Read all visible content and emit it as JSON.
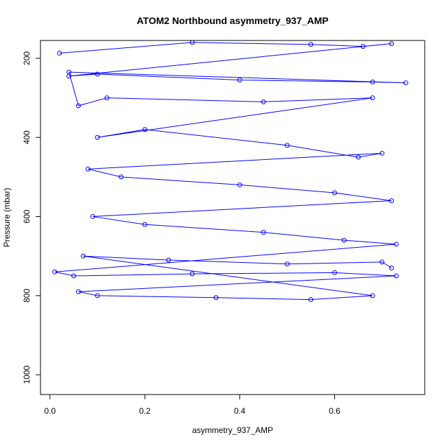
{
  "chart_data": {
    "type": "line",
    "title": "ATOM2 Northbound asymmetry_937_AMP",
    "xlabel": "asymmetry_937_AMP",
    "ylabel": "Pressure (mbar)",
    "xlim": [
      -0.02,
      0.79
    ],
    "ylim": [
      1050,
      155
    ],
    "y_reversed": true,
    "x_ticks": [
      0.0,
      0.2,
      0.4,
      0.6
    ],
    "x_tick_labels": [
      "0.0",
      "0.2",
      "0.4",
      "0.6"
    ],
    "y_ticks": [
      200,
      400,
      600,
      800,
      1000
    ],
    "y_tick_labels": [
      "200",
      "400",
      "600",
      "800",
      "1000"
    ],
    "grid": false,
    "series": [
      {
        "color": "#0000ff",
        "marker": "open-circle",
        "points": [
          [
            0.02,
            187
          ],
          [
            0.3,
            160
          ],
          [
            0.55,
            165
          ],
          [
            0.66,
            170
          ],
          [
            0.72,
            163
          ],
          [
            0.04,
            245
          ],
          [
            0.1,
            240
          ],
          [
            0.4,
            255
          ],
          [
            0.68,
            260
          ],
          [
            0.75,
            262
          ],
          [
            0.04,
            235
          ],
          [
            0.06,
            320
          ],
          [
            0.12,
            300
          ],
          [
            0.45,
            310
          ],
          [
            0.68,
            300
          ],
          [
            0.1,
            400
          ],
          [
            0.2,
            380
          ],
          [
            0.5,
            420
          ],
          [
            0.65,
            450
          ],
          [
            0.7,
            440
          ],
          [
            0.08,
            480
          ],
          [
            0.15,
            500
          ],
          [
            0.4,
            520
          ],
          [
            0.6,
            540
          ],
          [
            0.72,
            560
          ],
          [
            0.09,
            600
          ],
          [
            0.2,
            620
          ],
          [
            0.45,
            640
          ],
          [
            0.62,
            660
          ],
          [
            0.73,
            670
          ],
          [
            0.01,
            740
          ],
          [
            0.05,
            750
          ],
          [
            0.3,
            745
          ],
          [
            0.6,
            742
          ],
          [
            0.73,
            750
          ],
          [
            0.06,
            790
          ],
          [
            0.1,
            800
          ],
          [
            0.35,
            805
          ],
          [
            0.55,
            810
          ],
          [
            0.68,
            800
          ],
          [
            0.07,
            700
          ],
          [
            0.25,
            710
          ],
          [
            0.5,
            720
          ],
          [
            0.7,
            715
          ],
          [
            0.72,
            730
          ]
        ]
      }
    ]
  }
}
